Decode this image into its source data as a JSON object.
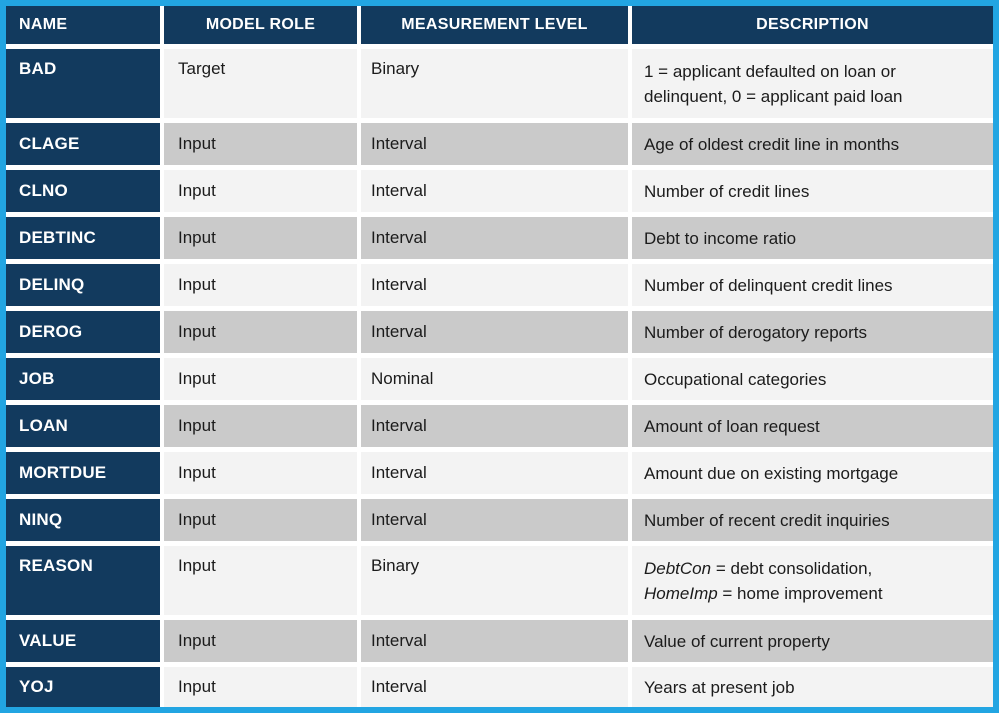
{
  "colors": {
    "border": "#22A5E2",
    "header_bg": "#123A5E",
    "name_bg": "#123A5E",
    "header_text": "#FFFFFF",
    "body_text": "#1B1B1B",
    "stripe_light": "#F3F3F3",
    "stripe_dark": "#CACACA"
  },
  "table": {
    "columns": [
      {
        "key": "name",
        "label": "NAME"
      },
      {
        "key": "role",
        "label": "MODEL ROLE"
      },
      {
        "key": "level",
        "label": "MEASUREMENT LEVEL"
      },
      {
        "key": "description",
        "label": "DESCRIPTION"
      }
    ],
    "rows": [
      {
        "name": "BAD",
        "role": "Target",
        "level": "Binary",
        "tall": true,
        "description": [
          {
            "t": "1 = applicant defaulted on loan or"
          },
          {
            "br": true
          },
          {
            "t": "delinquent, 0 = applicant paid loan"
          }
        ]
      },
      {
        "name": "CLAGE",
        "role": "Input",
        "level": "Interval",
        "description": [
          {
            "t": "Age of oldest credit line in months"
          }
        ]
      },
      {
        "name": "CLNO",
        "role": "Input",
        "level": "Interval",
        "description": [
          {
            "t": "Number of credit lines"
          }
        ]
      },
      {
        "name": "DEBTINC",
        "role": "Input",
        "level": "Interval",
        "description": [
          {
            "t": "Debt to income ratio"
          }
        ]
      },
      {
        "name": "DELINQ",
        "role": "Input",
        "level": "Interval",
        "description": [
          {
            "t": "Number of delinquent credit lines"
          }
        ]
      },
      {
        "name": "DEROG",
        "role": "Input",
        "level": "Interval",
        "description": [
          {
            "t": "Number of derogatory reports"
          }
        ]
      },
      {
        "name": "JOB",
        "role": "Input",
        "level": "Nominal",
        "description": [
          {
            "t": "Occupational categories"
          }
        ]
      },
      {
        "name": "LOAN",
        "role": "Input",
        "level": "Interval",
        "description": [
          {
            "t": "Amount of loan request"
          }
        ]
      },
      {
        "name": "MORTDUE",
        "role": "Input",
        "level": "Interval",
        "description": [
          {
            "t": "Amount due on existing mortgage"
          }
        ]
      },
      {
        "name": "NINQ",
        "role": "Input",
        "level": "Interval",
        "description": [
          {
            "t": "Number of recent credit inquiries"
          }
        ]
      },
      {
        "name": "REASON",
        "role": "Input",
        "level": "Binary",
        "tall": true,
        "description": [
          {
            "t": "DebtCon",
            "i": true
          },
          {
            "t": " = debt consolidation,"
          },
          {
            "br": true
          },
          {
            "t": "HomeImp",
            "i": true
          },
          {
            "t": " = home improvement"
          }
        ]
      },
      {
        "name": "VALUE",
        "role": "Input",
        "level": "Interval",
        "description": [
          {
            "t": "Value of current property"
          }
        ]
      },
      {
        "name": "YOJ",
        "role": "Input",
        "level": "Interval",
        "description": [
          {
            "t": "Years at present job"
          }
        ]
      }
    ]
  }
}
